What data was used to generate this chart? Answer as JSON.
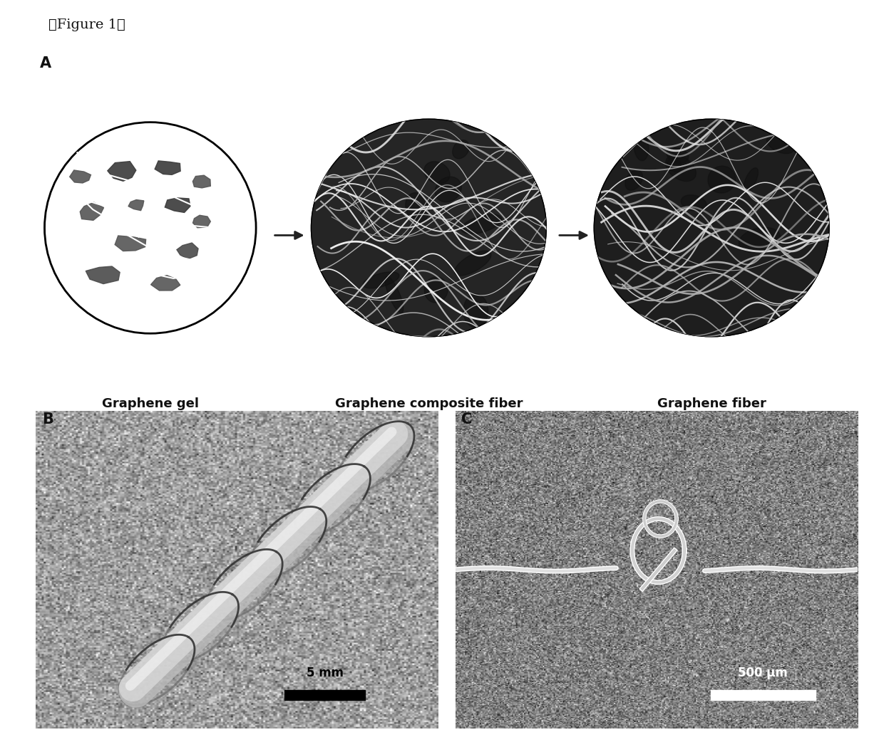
{
  "figure_label": "「Figure 1」",
  "panel_a_label": "A",
  "panel_b_label": "B",
  "panel_c_label": "C",
  "label1": "Graphene gel",
  "label2": "Graphene composite fiber",
  "label3": "Graphene fiber",
  "scale_bar_b": "5 mm",
  "scale_bar_c": "500 μm",
  "bg_color": "#ffffff",
  "label_fontsize": 13,
  "panel_label_fontsize": 15,
  "figure_label_fontsize": 14,
  "arrow_color": "#222222",
  "text_color": "#111111"
}
